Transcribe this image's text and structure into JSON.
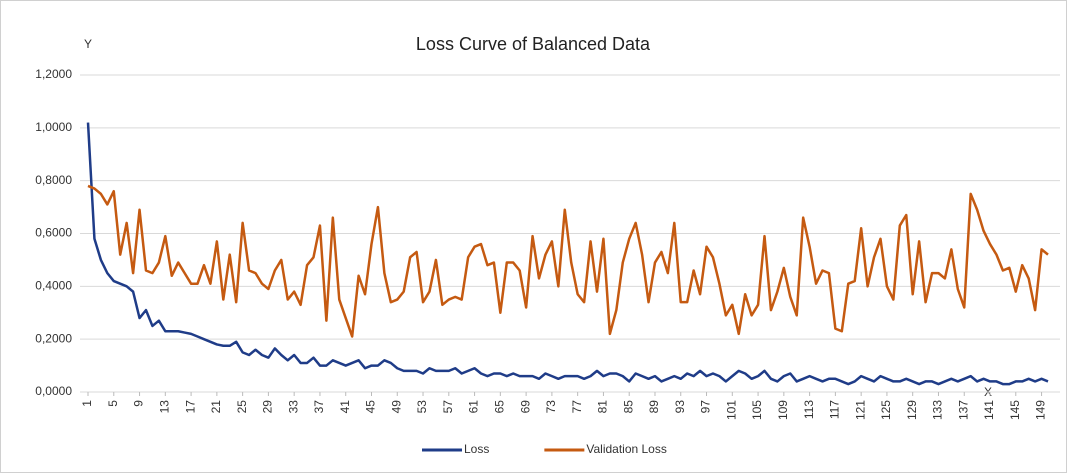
{
  "chart_data": {
    "type": "line",
    "title": "Loss Curve of Balanced Data",
    "x_label": "X",
    "y_label": "Y",
    "x": [
      1,
      2,
      3,
      4,
      5,
      6,
      7,
      8,
      9,
      10,
      11,
      12,
      13,
      14,
      15,
      16,
      17,
      18,
      19,
      20,
      21,
      22,
      23,
      24,
      25,
      26,
      27,
      28,
      29,
      30,
      31,
      32,
      33,
      34,
      35,
      36,
      37,
      38,
      39,
      40,
      41,
      42,
      43,
      44,
      45,
      46,
      47,
      48,
      49,
      50,
      51,
      52,
      53,
      54,
      55,
      56,
      57,
      58,
      59,
      60,
      61,
      62,
      63,
      64,
      65,
      66,
      67,
      68,
      69,
      70,
      71,
      72,
      73,
      74,
      75,
      76,
      77,
      78,
      79,
      80,
      81,
      82,
      83,
      84,
      85,
      86,
      87,
      88,
      89,
      90,
      91,
      92,
      93,
      94,
      95,
      96,
      97,
      98,
      99,
      100,
      101,
      102,
      103,
      104,
      105,
      106,
      107,
      108,
      109,
      110,
      111,
      112,
      113,
      114,
      115,
      116,
      117,
      118,
      119,
      120,
      121,
      122,
      123,
      124,
      125,
      126,
      127,
      128,
      129,
      130,
      131,
      132,
      133,
      134,
      135,
      136,
      137,
      138,
      139,
      140,
      141,
      142,
      143,
      144,
      145,
      146,
      147,
      148,
      149,
      150
    ],
    "xlim": [
      1,
      150
    ],
    "xticks": [
      1,
      5,
      9,
      13,
      17,
      21,
      25,
      29,
      33,
      37,
      41,
      45,
      49,
      53,
      57,
      61,
      65,
      69,
      73,
      77,
      81,
      85,
      89,
      93,
      97,
      101,
      105,
      109,
      113,
      117,
      121,
      125,
      129,
      133,
      137,
      141,
      145,
      149
    ],
    "ylim": [
      0,
      1.2
    ],
    "yticks": [
      {
        "value": 0,
        "label": "0,0000"
      },
      {
        "value": 0.2,
        "label": "0,2000"
      },
      {
        "value": 0.4,
        "label": "0,4000"
      },
      {
        "value": 0.6,
        "label": "0,6000"
      },
      {
        "value": 0.8,
        "label": "0,8000"
      },
      {
        "value": 1.0,
        "label": "1,0000"
      },
      {
        "value": 1.2,
        "label": "1,2000"
      }
    ],
    "grid": true,
    "legend": "bottom",
    "series": [
      {
        "name": "Loss",
        "color": "#1f3c88",
        "values": [
          1.02,
          0.58,
          0.5,
          0.45,
          0.42,
          0.41,
          0.4,
          0.38,
          0.28,
          0.31,
          0.25,
          0.27,
          0.23,
          0.23,
          0.23,
          0.225,
          0.22,
          0.21,
          0.2,
          0.19,
          0.18,
          0.175,
          0.175,
          0.19,
          0.15,
          0.14,
          0.16,
          0.14,
          0.13,
          0.165,
          0.14,
          0.12,
          0.14,
          0.11,
          0.11,
          0.13,
          0.1,
          0.1,
          0.12,
          0.11,
          0.1,
          0.11,
          0.12,
          0.09,
          0.1,
          0.1,
          0.12,
          0.11,
          0.09,
          0.08,
          0.08,
          0.08,
          0.07,
          0.09,
          0.08,
          0.08,
          0.08,
          0.09,
          0.07,
          0.08,
          0.09,
          0.07,
          0.06,
          0.07,
          0.07,
          0.06,
          0.07,
          0.06,
          0.06,
          0.06,
          0.05,
          0.07,
          0.06,
          0.05,
          0.06,
          0.06,
          0.06,
          0.05,
          0.06,
          0.08,
          0.06,
          0.07,
          0.07,
          0.06,
          0.04,
          0.07,
          0.06,
          0.05,
          0.06,
          0.04,
          0.05,
          0.06,
          0.05,
          0.07,
          0.06,
          0.08,
          0.06,
          0.07,
          0.06,
          0.04,
          0.06,
          0.08,
          0.07,
          0.05,
          0.06,
          0.08,
          0.05,
          0.04,
          0.06,
          0.07,
          0.04,
          0.05,
          0.06,
          0.05,
          0.04,
          0.05,
          0.05,
          0.04,
          0.03,
          0.04,
          0.06,
          0.05,
          0.04,
          0.06,
          0.05,
          0.04,
          0.04,
          0.05,
          0.04,
          0.03,
          0.04,
          0.04,
          0.03,
          0.04,
          0.05,
          0.04,
          0.05,
          0.06,
          0.04,
          0.05,
          0.04,
          0.04,
          0.03,
          0.03,
          0.04,
          0.04,
          0.05,
          0.04,
          0.05,
          0.04
        ]
      },
      {
        "name": "Validation Loss",
        "color": "#c55a11",
        "values": [
          0.78,
          0.77,
          0.75,
          0.71,
          0.76,
          0.52,
          0.64,
          0.45,
          0.69,
          0.46,
          0.45,
          0.49,
          0.59,
          0.44,
          0.49,
          0.45,
          0.41,
          0.41,
          0.48,
          0.41,
          0.57,
          0.35,
          0.52,
          0.34,
          0.64,
          0.46,
          0.45,
          0.41,
          0.39,
          0.46,
          0.5,
          0.35,
          0.38,
          0.33,
          0.48,
          0.51,
          0.63,
          0.27,
          0.66,
          0.35,
          0.28,
          0.21,
          0.44,
          0.37,
          0.56,
          0.7,
          0.45,
          0.34,
          0.35,
          0.38,
          0.51,
          0.53,
          0.34,
          0.38,
          0.5,
          0.33,
          0.35,
          0.36,
          0.35,
          0.51,
          0.55,
          0.56,
          0.48,
          0.49,
          0.3,
          0.49,
          0.49,
          0.46,
          0.32,
          0.59,
          0.43,
          0.52,
          0.57,
          0.4,
          0.69,
          0.49,
          0.37,
          0.34,
          0.57,
          0.38,
          0.58,
          0.22,
          0.31,
          0.49,
          0.58,
          0.64,
          0.52,
          0.34,
          0.49,
          0.53,
          0.45,
          0.64,
          0.34,
          0.34,
          0.46,
          0.37,
          0.55,
          0.51,
          0.41,
          0.29,
          0.33,
          0.22,
          0.37,
          0.29,
          0.33,
          0.59,
          0.31,
          0.38,
          0.47,
          0.36,
          0.29,
          0.66,
          0.55,
          0.41,
          0.46,
          0.45,
          0.24,
          0.23,
          0.41,
          0.42,
          0.62,
          0.4,
          0.51,
          0.58,
          0.4,
          0.35,
          0.63,
          0.67,
          0.37,
          0.57,
          0.34,
          0.45,
          0.45,
          0.43,
          0.54,
          0.39,
          0.32,
          0.75,
          0.69,
          0.61,
          0.56,
          0.52,
          0.46,
          0.47,
          0.38,
          0.48,
          0.43,
          0.31,
          0.54,
          0.52
        ]
      }
    ]
  }
}
